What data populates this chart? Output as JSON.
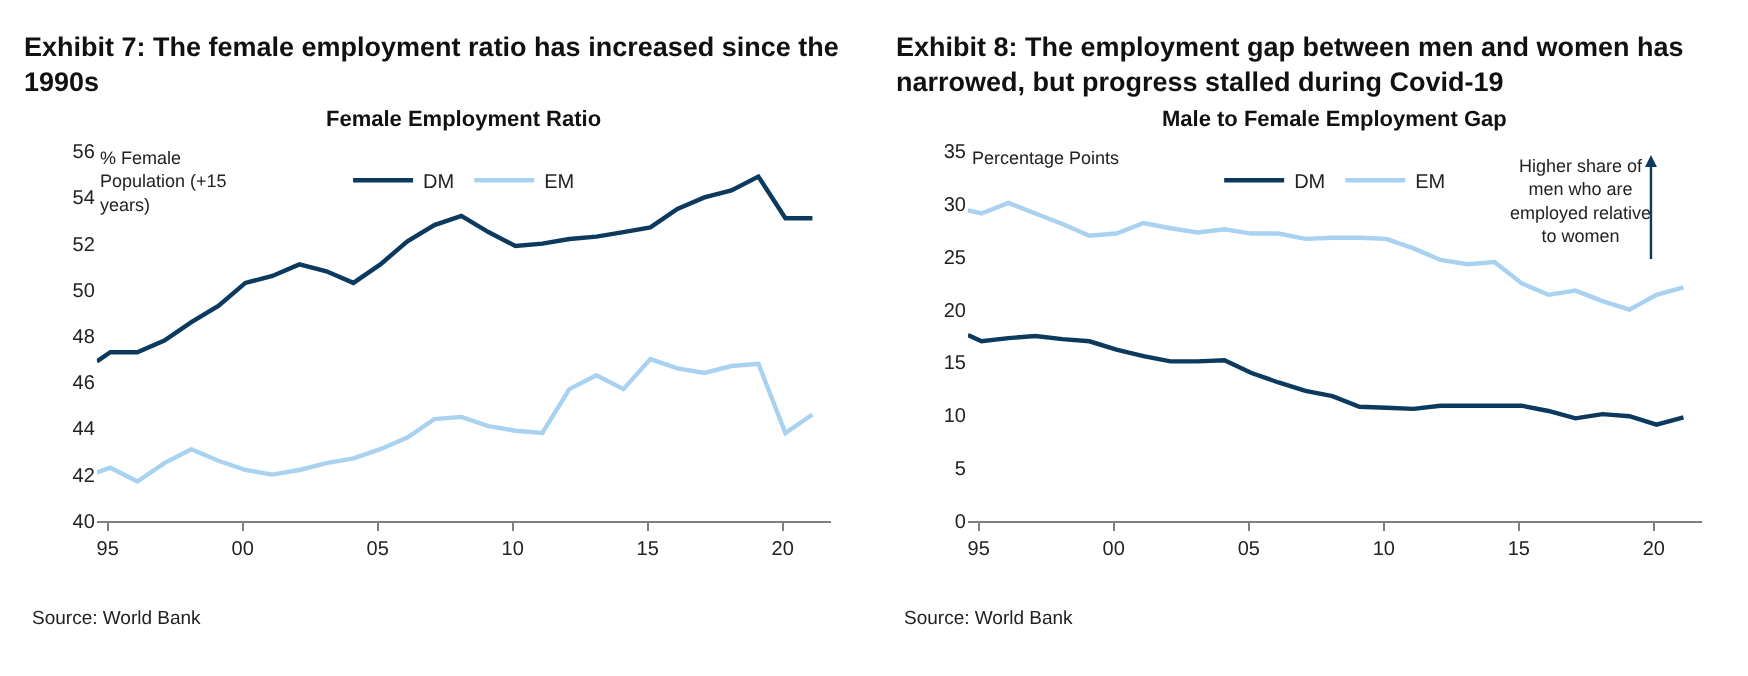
{
  "chart_data": [
    {
      "type": "line",
      "title": "Exhibit 7: The female employment ratio has increased since the 1990s",
      "subtitle": "Female Employment Ratio",
      "ylabel": "% Female Population (+15 years)",
      "x": [
        1994.6,
        1995.1,
        1996.1,
        1997.1,
        1998.1,
        1999.1,
        2000.1,
        2001.1,
        2002.1,
        2003.1,
        2004.1,
        2005.1,
        2006.1,
        2007.1,
        2008.1,
        2009.1,
        2010.1,
        2011.1,
        2012.1,
        2013.1,
        2014.1,
        2015.1,
        2016.1,
        2017.1,
        2018.1,
        2019.1,
        2020.1,
        2021.1
      ],
      "series": [
        {
          "name": "DM",
          "color": "#0b3a5e",
          "values": [
            46.9,
            47.3,
            47.3,
            47.8,
            48.6,
            49.3,
            50.3,
            50.6,
            51.1,
            50.8,
            50.3,
            51.1,
            52.1,
            52.8,
            53.2,
            52.5,
            51.9,
            52.0,
            52.2,
            52.3,
            52.5,
            52.7,
            53.5,
            54.0,
            54.3,
            54.9,
            53.1,
            53.1
          ]
        },
        {
          "name": "EM",
          "color": "#a9d1f0",
          "values": [
            42.1,
            42.3,
            41.7,
            42.5,
            43.1,
            42.6,
            42.2,
            42.0,
            42.2,
            42.5,
            42.7,
            43.1,
            43.6,
            44.4,
            44.5,
            44.1,
            43.9,
            43.8,
            45.7,
            46.3,
            45.7,
            47.0,
            46.6,
            46.4,
            46.7,
            46.8,
            43.8,
            44.6
          ]
        }
      ],
      "xlim": [
        1994.6,
        2021.8
      ],
      "xticks": [
        {
          "value": 1995,
          "label": "95"
        },
        {
          "value": 2000,
          "label": "00"
        },
        {
          "value": 2005,
          "label": "05"
        },
        {
          "value": 2010,
          "label": "10"
        },
        {
          "value": 2015,
          "label": "15"
        },
        {
          "value": 2020,
          "label": "20"
        }
      ],
      "ylim": [
        40,
        56
      ],
      "yticks": [
        40,
        42,
        44,
        46,
        48,
        50,
        52,
        54,
        56
      ],
      "legend": "top",
      "annotations": [
        "Source: World Bank"
      ]
    },
    {
      "type": "line",
      "title": "Exhibit 8: The employment gap between men and women has narrowed, but progress stalled during Covid-19",
      "subtitle": "Male to Female Employment Gap",
      "ylabel": "Percentage Points",
      "x": [
        1994.6,
        1995.1,
        1996.1,
        1997.1,
        1998.1,
        1999.1,
        2000.1,
        2001.1,
        2002.1,
        2003.1,
        2004.1,
        2005.1,
        2006.1,
        2007.1,
        2008.1,
        2009.1,
        2010.1,
        2011.1,
        2012.1,
        2013.1,
        2014.1,
        2015.1,
        2016.1,
        2017.1,
        2018.1,
        2019.1,
        2020.1,
        2021.1
      ],
      "series": [
        {
          "name": "DM",
          "color": "#0b3a5e",
          "values": [
            17.6,
            17.0,
            17.3,
            17.5,
            17.2,
            17.0,
            16.2,
            15.6,
            15.1,
            15.1,
            15.2,
            14.0,
            13.1,
            12.3,
            11.8,
            10.8,
            10.7,
            10.6,
            10.9,
            10.9,
            10.9,
            10.9,
            10.4,
            9.7,
            10.1,
            9.9,
            9.1,
            9.8
          ]
        },
        {
          "name": "EM",
          "color": "#a9d1f0",
          "values": [
            29.4,
            29.1,
            30.1,
            29.1,
            28.1,
            27.0,
            27.2,
            28.2,
            27.7,
            27.3,
            27.6,
            27.2,
            27.2,
            26.7,
            26.8,
            26.8,
            26.7,
            25.8,
            24.7,
            24.3,
            24.5,
            22.5,
            21.4,
            21.8,
            20.8,
            20.0,
            21.4,
            22.1
          ]
        }
      ],
      "xlim": [
        1994.6,
        2021.8
      ],
      "xticks": [
        {
          "value": 1995,
          "label": "95"
        },
        {
          "value": 2000,
          "label": "00"
        },
        {
          "value": 2005,
          "label": "05"
        },
        {
          "value": 2010,
          "label": "10"
        },
        {
          "value": 2015,
          "label": "15"
        },
        {
          "value": 2020,
          "label": "20"
        }
      ],
      "ylim": [
        0,
        35
      ],
      "yticks": [
        0,
        5,
        10,
        15,
        20,
        25,
        30,
        35
      ],
      "legend": "top",
      "annotations": [
        "Higher share of men who are employed relative to women",
        "Source: World Bank"
      ]
    }
  ]
}
